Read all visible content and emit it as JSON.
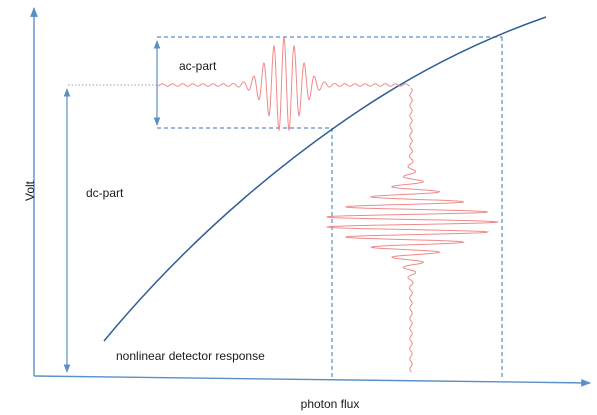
{
  "labels": {
    "y_axis": "Volt",
    "x_axis": "photon flux",
    "ac_part": "ac-part",
    "dc_part": "dc-part",
    "curve": "nonlinear detector response"
  },
  "colors": {
    "axis": "#5b8fc9",
    "curve": "#2f5f96",
    "dashed": "#5b8fc9",
    "signal": "#f08a8a",
    "dotted_ref": "#9aa0a6"
  },
  "icons": [
    "arrow-up-icon",
    "arrow-right-icon",
    "double-arrow-icon"
  ]
}
